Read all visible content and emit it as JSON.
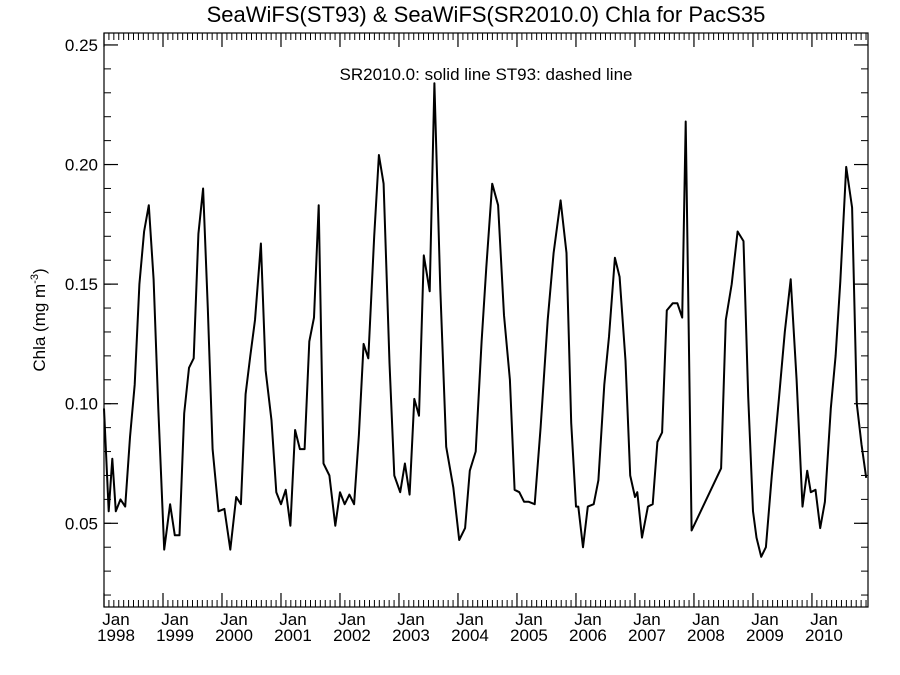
{
  "chart_data": {
    "type": "line",
    "title": "SeaWiFS(ST93) & SeaWiFS(SR2010.0)  Chla for PacS35",
    "annotation": "SR2010.0: solid line   ST93: dashed line",
    "xlabel": "",
    "ylabel": "Chla (mg m",
    "ylabel_sup": "-3",
    "ylabel_suffix": ")",
    "ylim": [
      0.015,
      0.255
    ],
    "xlim": [
      1998.0,
      2010.95
    ],
    "y_ticks": [
      0.05,
      0.1,
      0.15,
      0.2,
      0.25
    ],
    "y_tick_labels": [
      "0.05",
      "0.10",
      "0.15",
      "0.20",
      "0.25"
    ],
    "x_ticks": [
      {
        "month": "Jan",
        "year": "1998"
      },
      {
        "month": "Jan",
        "year": "1999"
      },
      {
        "month": "Jan",
        "year": "2000"
      },
      {
        "month": "Jan",
        "year": "2001"
      },
      {
        "month": "Jan",
        "year": "2002"
      },
      {
        "month": "Jan",
        "year": "2003"
      },
      {
        "month": "Jan",
        "year": "2004"
      },
      {
        "month": "Jan",
        "year": "2005"
      },
      {
        "month": "Jan",
        "year": "2006"
      },
      {
        "month": "Jan",
        "year": "2007"
      },
      {
        "month": "Jan",
        "year": "2008"
      },
      {
        "month": "Jan",
        "year": "2009"
      },
      {
        "month": "Jan",
        "year": "2010"
      }
    ],
    "grid": false,
    "series": [
      {
        "style": "solid",
        "points": [
          [
            1998.0,
            0.098
          ],
          [
            1998.08,
            0.055
          ],
          [
            1998.14,
            0.077
          ],
          [
            1998.2,
            0.055
          ],
          [
            1998.28,
            0.06
          ],
          [
            1998.36,
            0.057
          ],
          [
            1998.44,
            0.086
          ],
          [
            1998.52,
            0.108
          ],
          [
            1998.6,
            0.15
          ],
          [
            1998.68,
            0.172
          ],
          [
            1998.76,
            0.183
          ],
          [
            1998.84,
            0.152
          ],
          [
            1998.92,
            0.098
          ],
          [
            1999.02,
            0.039
          ],
          [
            1999.12,
            0.058
          ],
          [
            1999.2,
            0.045
          ],
          [
            1999.28,
            0.045
          ],
          [
            1999.36,
            0.096
          ],
          [
            1999.44,
            0.115
          ],
          [
            1999.52,
            0.119
          ],
          [
            1999.6,
            0.171
          ],
          [
            1999.68,
            0.19
          ],
          [
            1999.76,
            0.14
          ],
          [
            1999.84,
            0.081
          ],
          [
            1999.94,
            0.055
          ],
          [
            2000.04,
            0.056
          ],
          [
            2000.14,
            0.039
          ],
          [
            2000.24,
            0.061
          ],
          [
            2000.32,
            0.058
          ],
          [
            2000.4,
            0.104
          ],
          [
            2000.48,
            0.12
          ],
          [
            2000.56,
            0.135
          ],
          [
            2000.66,
            0.167
          ],
          [
            2000.74,
            0.114
          ],
          [
            2000.84,
            0.093
          ],
          [
            2000.92,
            0.063
          ],
          [
            2001.0,
            0.058
          ],
          [
            2001.08,
            0.064
          ],
          [
            2001.16,
            0.049
          ],
          [
            2001.24,
            0.089
          ],
          [
            2001.32,
            0.081
          ],
          [
            2001.4,
            0.081
          ],
          [
            2001.48,
            0.126
          ],
          [
            2001.56,
            0.136
          ],
          [
            2001.64,
            0.183
          ],
          [
            2001.72,
            0.075
          ],
          [
            2001.82,
            0.07
          ],
          [
            2001.92,
            0.049
          ],
          [
            2002.0,
            0.063
          ],
          [
            2002.08,
            0.058
          ],
          [
            2002.16,
            0.062
          ],
          [
            2002.24,
            0.058
          ],
          [
            2002.32,
            0.087
          ],
          [
            2002.4,
            0.125
          ],
          [
            2002.48,
            0.119
          ],
          [
            2002.58,
            0.17
          ],
          [
            2002.66,
            0.204
          ],
          [
            2002.74,
            0.192
          ],
          [
            2002.84,
            0.117
          ],
          [
            2002.92,
            0.07
          ],
          [
            2003.02,
            0.063
          ],
          [
            2003.1,
            0.075
          ],
          [
            2003.18,
            0.062
          ],
          [
            2003.26,
            0.102
          ],
          [
            2003.34,
            0.095
          ],
          [
            2003.42,
            0.162
          ],
          [
            2003.52,
            0.147
          ],
          [
            2003.6,
            0.234
          ],
          [
            2003.7,
            0.148
          ],
          [
            2003.8,
            0.082
          ],
          [
            2003.92,
            0.065
          ],
          [
            2004.02,
            0.043
          ],
          [
            2004.12,
            0.048
          ],
          [
            2004.2,
            0.072
          ],
          [
            2004.3,
            0.08
          ],
          [
            2004.4,
            0.126
          ],
          [
            2004.48,
            0.157
          ],
          [
            2004.58,
            0.192
          ],
          [
            2004.68,
            0.183
          ],
          [
            2004.78,
            0.137
          ],
          [
            2004.88,
            0.11
          ],
          [
            2004.96,
            0.064
          ],
          [
            2005.04,
            0.063
          ],
          [
            2005.12,
            0.059
          ],
          [
            2005.2,
            0.059
          ],
          [
            2005.3,
            0.058
          ],
          [
            2005.4,
            0.09
          ],
          [
            2005.52,
            0.135
          ],
          [
            2005.62,
            0.163
          ],
          [
            2005.74,
            0.185
          ],
          [
            2005.84,
            0.163
          ],
          [
            2005.92,
            0.092
          ],
          [
            2006.0,
            0.057
          ],
          [
            2006.04,
            0.057
          ],
          [
            2006.12,
            0.04
          ],
          [
            2006.2,
            0.057
          ],
          [
            2006.3,
            0.058
          ],
          [
            2006.38,
            0.068
          ],
          [
            2006.48,
            0.108
          ],
          [
            2006.56,
            0.128
          ],
          [
            2006.66,
            0.161
          ],
          [
            2006.74,
            0.153
          ],
          [
            2006.84,
            0.118
          ],
          [
            2006.92,
            0.07
          ],
          [
            2007.0,
            0.061
          ],
          [
            2007.04,
            0.063
          ],
          [
            2007.12,
            0.044
          ],
          [
            2007.22,
            0.057
          ],
          [
            2007.3,
            0.058
          ],
          [
            2007.38,
            0.084
          ],
          [
            2007.46,
            0.088
          ],
          [
            2007.54,
            0.139
          ],
          [
            2007.64,
            0.142
          ],
          [
            2007.72,
            0.142
          ],
          [
            2007.8,
            0.136
          ],
          [
            2007.86,
            0.218
          ],
          [
            2007.96,
            0.047
          ],
          [
            2008.46,
            0.073
          ],
          [
            2008.54,
            0.135
          ],
          [
            2008.64,
            0.15
          ],
          [
            2008.74,
            0.172
          ],
          [
            2008.84,
            0.168
          ],
          [
            2008.92,
            0.103
          ],
          [
            2009.0,
            0.055
          ],
          [
            2009.06,
            0.044
          ],
          [
            2009.14,
            0.036
          ],
          [
            2009.22,
            0.04
          ],
          [
            2009.32,
            0.07
          ],
          [
            2009.44,
            0.102
          ],
          [
            2009.54,
            0.13
          ],
          [
            2009.64,
            0.152
          ],
          [
            2009.74,
            0.11
          ],
          [
            2009.84,
            0.057
          ],
          [
            2009.92,
            0.072
          ],
          [
            2009.98,
            0.063
          ],
          [
            2010.06,
            0.064
          ],
          [
            2010.14,
            0.048
          ],
          [
            2010.22,
            0.059
          ],
          [
            2010.32,
            0.098
          ],
          [
            2010.4,
            0.12
          ],
          [
            2010.48,
            0.151
          ],
          [
            2010.58,
            0.199
          ],
          [
            2010.68,
            0.182
          ],
          [
            2010.76,
            0.1
          ],
          [
            2010.84,
            0.083
          ],
          [
            2010.92,
            0.069
          ]
        ]
      }
    ]
  }
}
